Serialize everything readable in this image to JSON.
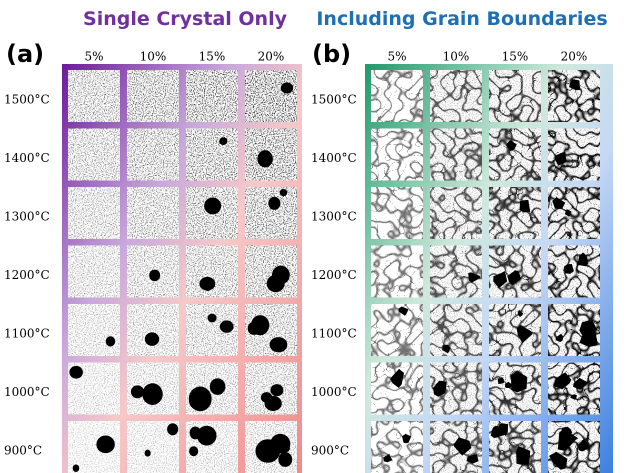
{
  "titles": {
    "a": "Single Crystal Only",
    "b": "Including Grain Boundaries"
  },
  "panels": [
    {
      "label": "(a)",
      "columns": [
        "5%",
        "10%",
        "15%",
        "20%"
      ],
      "rows": [
        "1500°C",
        "1400°C",
        "1300°C",
        "1200°C",
        "1100°C",
        "1000°C",
        "900°C"
      ]
    },
    {
      "label": "(b)",
      "columns": [
        "5%",
        "10%",
        "15%",
        "20%"
      ],
      "rows": [
        "1500°C",
        "1400°C",
        "1300°C",
        "1200°C",
        "1100°C",
        "1000°C",
        "900°C"
      ]
    }
  ]
}
